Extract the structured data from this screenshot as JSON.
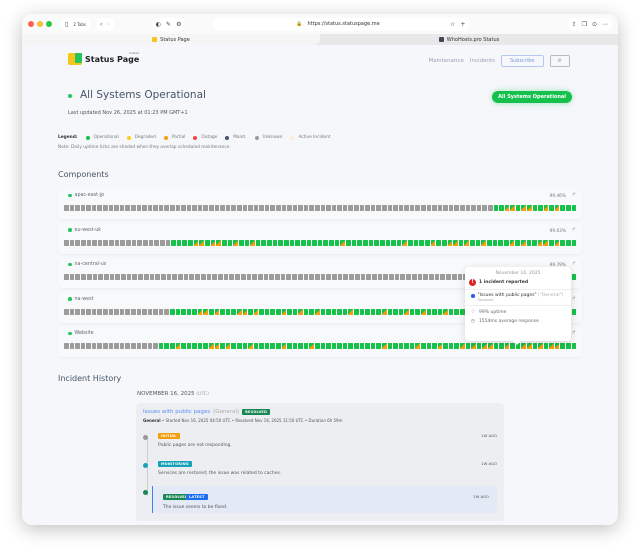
{
  "browser": {
    "tabs_count": "2 Tabs",
    "url": "https://status.statuspage.me",
    "tabs": [
      {
        "label": "Status Page"
      },
      {
        "label": "WhoHosts.pro Status"
      }
    ]
  },
  "header": {
    "brand": "Status Page",
    "brand_tag": "hosted",
    "nav": [
      "Maintenance",
      "Incidents"
    ],
    "subscribe": "Subscribe",
    "settings_icon": "gear-icon"
  },
  "status": {
    "title": "All Systems Operational",
    "updated": "Last updated Nov 26, 2025 at 01:23 PM GMT+1",
    "badge": "All Systems Operational"
  },
  "legend": {
    "label": "Legend:",
    "items": [
      {
        "label": "Operational",
        "color": "#17c24b"
      },
      {
        "label": "Degraded",
        "color": "#facc15"
      },
      {
        "label": "Partial",
        "color": "#f59e0b"
      },
      {
        "label": "Outage",
        "color": "#ef4444"
      },
      {
        "label": "Maint.",
        "color": "#475569"
      },
      {
        "label": "Unknown",
        "color": "#9b9b9b"
      },
      {
        "label": "Active Incident",
        "color": "#fbeedd"
      }
    ],
    "note": "Note: Daily uptime ticks are shaded when they overlap scheduled maintenance."
  },
  "components_title": "Components",
  "tick_states": {
    "u": "Unknown",
    "o": "Operational",
    "p": "Operational with partial"
  },
  "components": [
    {
      "name": "apac-east-jp",
      "uptime": "99.46%",
      "ticks": "uuuuuuuuuuuuuuuuuuuuuuuuuuuuuuuuuuuuuuuuuuuuuuuuuuuuuuuuuuuuuuuuuuuuuuuuuuuuuooppoppoopopooo"
    },
    {
      "name": "eu-west-uk",
      "uptime": "99.63%",
      "ticks": "uuuuuuuuuuuuuuuuuuuooooppoppoopoopooooooooooooooopoooooooooopoooopooppopoopoooopopooppopooo"
    },
    {
      "name": "na-central-us",
      "uptime": "99.79%",
      "ticks": "uuuuuuuuuuuuuuuuuuuuuuuuuuuuuuuuuuuuuuuuuuuuuuuuuuuuuuuuuuuuuuuuuuuuuuuuuuuuuuuuuuuuuuoooo"
    },
    {
      "name": "na-west",
      "uptime": "",
      "ticks": "uuuuuuuuuuuuuuuuuuuoooooppopoooppopoooopoopoopooooopooooopooopoopooopooopoooopoopopopopopooo"
    },
    {
      "name": "Website",
      "uptime": "",
      "ticks": "uuuuuuuuuuuuuuuuuooopoooooppopooopooooopoooopoooooooooooopooooopooopooopopoppoopooppopoppooo"
    }
  ],
  "tooltip": {
    "date": "November 16, 2025",
    "reported": "1 incident reported",
    "incident": "\"Issues with public pages\"",
    "incident_group": "(\"General\")",
    "incident_status": "Resolved",
    "uptime": "99% uptime",
    "response": "1554ms average response"
  },
  "history": {
    "title": "Incident History",
    "date": "NOVEMBER 16, 2025",
    "tz": "(UTC)",
    "incident": {
      "title": "Issues with public pages",
      "group": "(General)",
      "badge": "RESOLVED",
      "meta_group": "General",
      "meta": " • Started Nov 16, 2025 04:50 UTC • Resolved Nov 16, 2025 11:50 UTC • Duration 6h 59m",
      "updates": [
        {
          "status": "INITIAL",
          "color": "#f59e0b",
          "dot": "#999",
          "ago": "1W AGO",
          "message": "Public pages are not responding."
        },
        {
          "status": "MONITORING",
          "color": "#17a2b8",
          "dot": "#17a2b8",
          "ago": "1W AGO",
          "message": "Services are restored; the issue was related to caches."
        },
        {
          "status": "RESOLVED",
          "color": "#198754",
          "dot": "#198754",
          "ago": "1W AGO",
          "message": "The issue seems to be fixed.",
          "latest": "LATEST"
        }
      ]
    }
  }
}
